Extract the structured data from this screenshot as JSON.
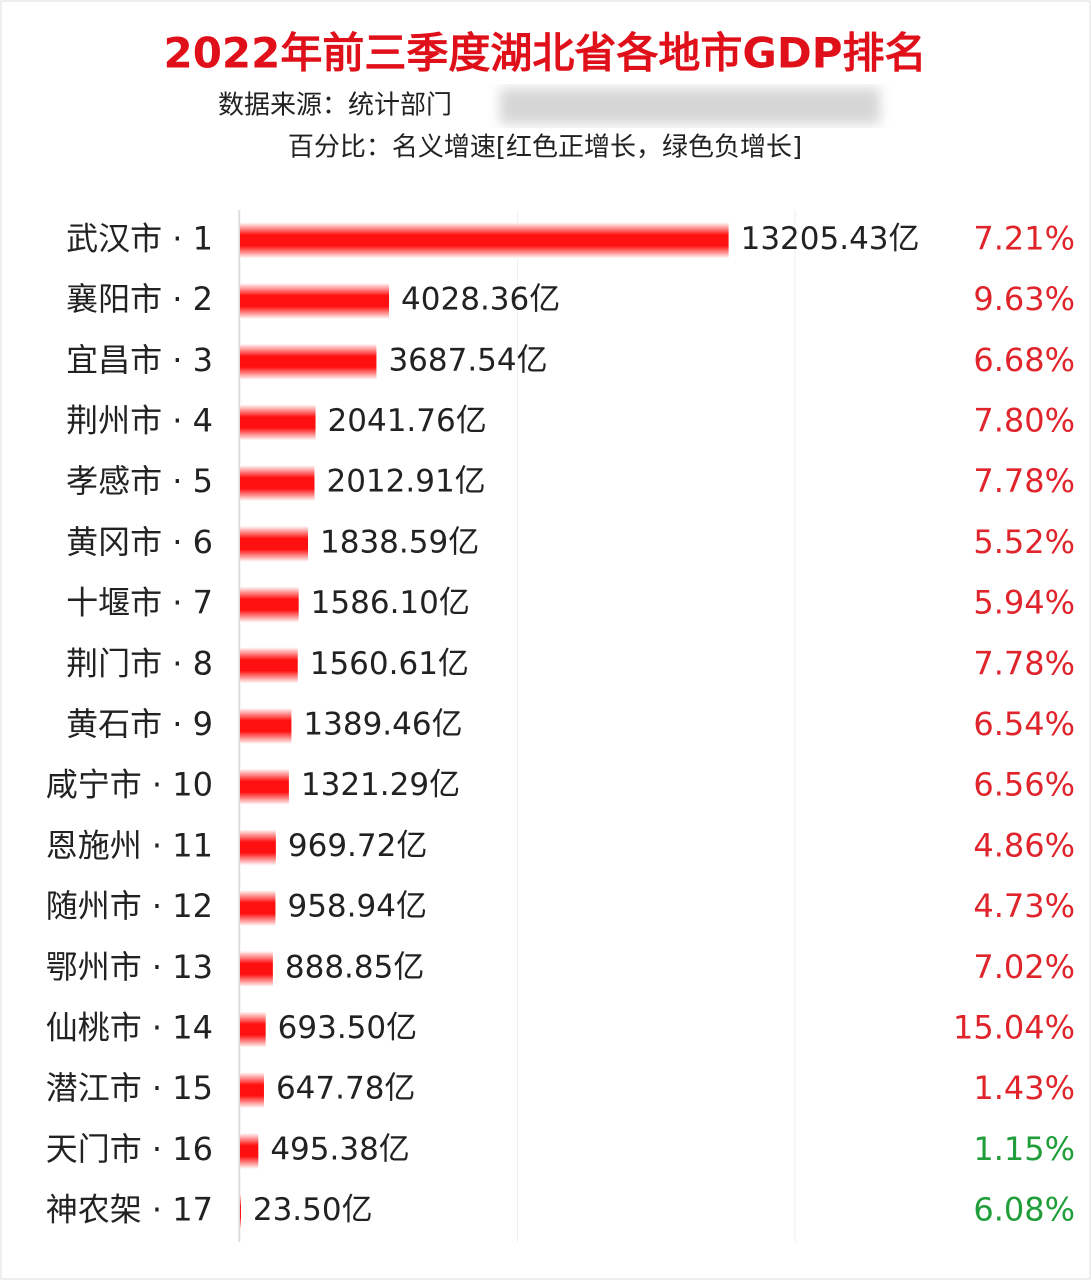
{
  "chart_data": {
    "type": "bar",
    "orientation": "horizontal",
    "title": "2022年前三季度湖北省各地市GDP排名",
    "subtitle": "数据来源：统计部门",
    "note": "百分比：名义增速[红色正增长，绿色负增长]",
    "categories": [
      "武汉市 · 1",
      "襄阳市 · 2",
      "宜昌市 · 3",
      "荆州市 · 4",
      "孝感市 · 5",
      "黄冈市 · 6",
      "十堰市 · 7",
      "荆门市 · 8",
      "黄石市 · 9",
      "咸宁市 · 10",
      "恩施州 · 11",
      "随州市 · 12",
      "鄂州市 · 13",
      "仙桃市 · 14",
      "潜江市 · 15",
      "天门市 · 16",
      "神农架 · 17"
    ],
    "values": [
      13205.43,
      4028.36,
      3687.54,
      2041.76,
      2012.91,
      1838.59,
      1586.1,
      1560.61,
      1389.46,
      1321.29,
      969.72,
      958.94,
      888.85,
      693.5,
      647.78,
      495.38,
      23.5
    ],
    "value_labels": [
      "13205.43亿",
      "4028.36亿",
      "3687.54亿",
      "2041.76亿",
      "2012.91亿",
      "1838.59亿",
      "1586.10亿",
      "1560.61亿",
      "1389.46亿",
      "1321.29亿",
      "969.72亿",
      "958.94亿",
      "888.85亿",
      "693.50亿",
      "647.78亿",
      "495.38亿",
      "23.50亿"
    ],
    "growth_labels": [
      "7.21%",
      "9.63%",
      "6.68%",
      "7.80%",
      "7.78%",
      "5.52%",
      "5.94%",
      "7.78%",
      "6.54%",
      "6.56%",
      "4.86%",
      "4.73%",
      "7.02%",
      "15.04%",
      "1.43%",
      "1.15%",
      "6.08%"
    ],
    "growth_colors": [
      "#e0242b",
      "#e0242b",
      "#e0242b",
      "#e0242b",
      "#e0242b",
      "#e0242b",
      "#e0242b",
      "#e0242b",
      "#e0242b",
      "#e0242b",
      "#e0242b",
      "#e0242b",
      "#e0242b",
      "#e0242b",
      "#e0242b",
      "#1f9e3a",
      "#1f9e3a"
    ],
    "color": "#ff1010",
    "xlim": [
      0,
      15000
    ],
    "xticks": [
      0,
      7500,
      15000
    ],
    "grid": true
  }
}
